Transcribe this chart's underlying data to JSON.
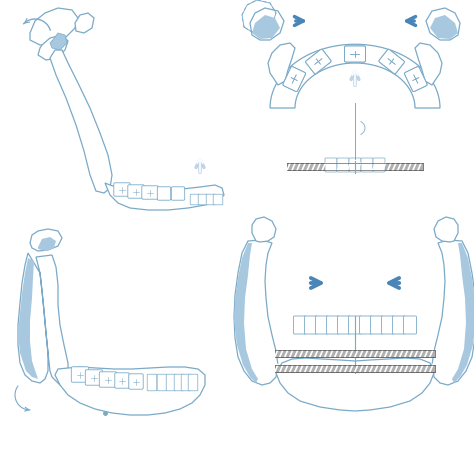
{
  "bg_color": "#ffffff",
  "line_color": "#7aaac8",
  "fill_color": "#a8c8e0",
  "arrow_color": "#4a85b8",
  "light_arrow_color": "#c0d4e8",
  "screw_color": "#909090",
  "figsize": [
    4.74,
    4.53
  ],
  "dpi": 100
}
